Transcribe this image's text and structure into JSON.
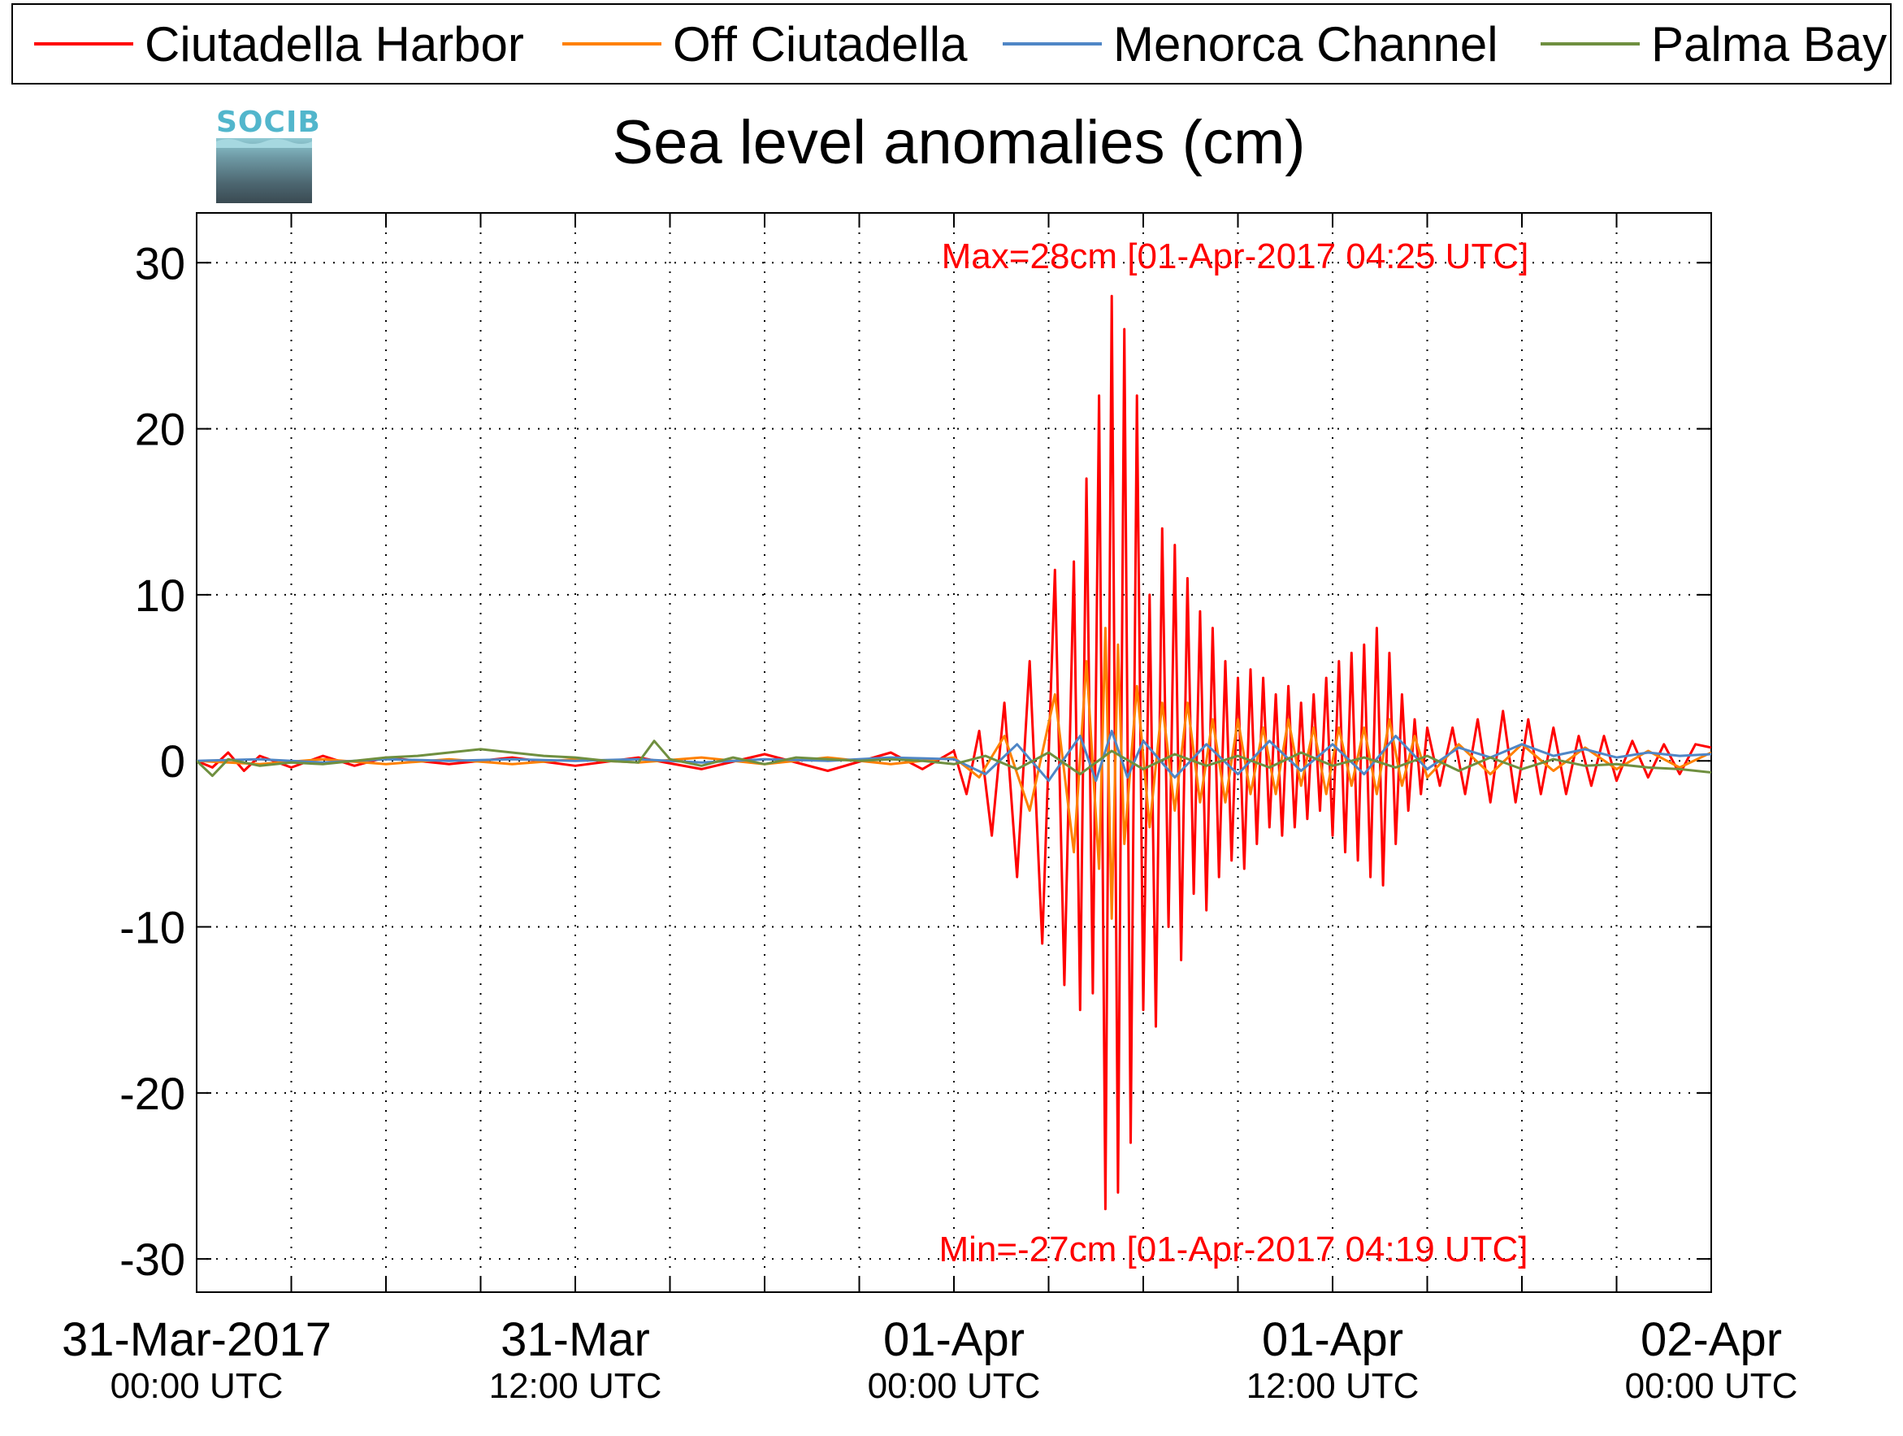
{
  "legend": {
    "items": [
      {
        "label": "Ciutadella Harbor",
        "color": "#ff0000"
      },
      {
        "label": "Off Ciutadella",
        "color": "#ff8000"
      },
      {
        "label": "Menorca Channel",
        "color": "#4f86c6"
      },
      {
        "label": "Palma Bay",
        "color": "#6f8f3f"
      }
    ]
  },
  "logo": {
    "text": "SOCIB"
  },
  "chart_data": {
    "type": "line",
    "title": "Sea level anomalies (cm)",
    "xlabel": "",
    "ylabel": "",
    "ylim": [
      -32,
      33
    ],
    "xlim_hours": [
      0,
      48
    ],
    "grid": true,
    "y_ticks": [
      -30,
      -20,
      -10,
      0,
      10,
      20,
      30
    ],
    "x_major_ticks": [
      {
        "hours": 0,
        "line1": "31-Mar-2017",
        "line2": "00:00 UTC"
      },
      {
        "hours": 12,
        "line1": "31-Mar",
        "line2": "12:00 UTC"
      },
      {
        "hours": 24,
        "line1": "01-Apr",
        "line2": "00:00 UTC"
      },
      {
        "hours": 36,
        "line1": "01-Apr",
        "line2": "12:00 UTC"
      },
      {
        "hours": 48,
        "line1": "02-Apr",
        "line2": "00:00 UTC"
      }
    ],
    "x_minor_tick_hours": [
      3,
      6,
      9,
      15,
      18,
      21,
      27,
      30,
      33,
      39,
      42,
      45
    ],
    "annotations": {
      "max": {
        "text": "Max=28cm [01-Apr-2017 04:25 UTC]",
        "color": "#ff0000"
      },
      "min": {
        "text": "Min=-27cm [01-Apr-2017 04:19 UTC]",
        "color": "#ff0000"
      }
    },
    "series": [
      {
        "name": "Ciutadella Harbor",
        "color": "#ff0000",
        "x": [
          0,
          0.5,
          1,
          1.5,
          2,
          3,
          4,
          5,
          6,
          8,
          10,
          12,
          14,
          16,
          18,
          20,
          22,
          23,
          24,
          24.4,
          24.8,
          25.2,
          25.6,
          26.0,
          26.4,
          26.8,
          27.2,
          27.5,
          27.8,
          28.0,
          28.2,
          28.4,
          28.6,
          28.8,
          29.0,
          29.2,
          29.4,
          29.6,
          29.8,
          30.0,
          30.2,
          30.4,
          30.6,
          30.8,
          31.0,
          31.2,
          31.4,
          31.6,
          31.8,
          32.0,
          32.2,
          32.4,
          32.6,
          32.8,
          33.0,
          33.2,
          33.4,
          33.6,
          33.8,
          34.0,
          34.2,
          34.4,
          34.6,
          34.8,
          35.0,
          35.2,
          35.4,
          35.6,
          35.8,
          36.0,
          36.2,
          36.4,
          36.6,
          36.8,
          37.0,
          37.2,
          37.4,
          37.6,
          37.8,
          38.0,
          38.2,
          38.4,
          38.6,
          38.8,
          39.0,
          39.4,
          39.8,
          40.2,
          40.6,
          41.0,
          41.4,
          41.8,
          42.2,
          42.6,
          43.0,
          43.4,
          43.8,
          44.2,
          44.6,
          45.0,
          45.5,
          46.0,
          46.5,
          47.0,
          47.5,
          48.0
        ],
        "y": [
          0,
          -0.4,
          0.5,
          -0.6,
          0.3,
          -0.4,
          0.3,
          -0.3,
          0.2,
          -0.2,
          0.2,
          -0.3,
          0.2,
          -0.5,
          0.4,
          -0.6,
          0.5,
          -0.5,
          0.6,
          -2.0,
          1.8,
          -4.5,
          3.5,
          -7.0,
          6.0,
          -11.0,
          11.5,
          -13.5,
          12.0,
          -15.0,
          17.0,
          -14.0,
          22.0,
          -27.0,
          28.0,
          -26.0,
          26.0,
          -23.0,
          22.0,
          -15.0,
          10.0,
          -16.0,
          14.0,
          -10.0,
          13.0,
          -12.0,
          11.0,
          -8.0,
          9.0,
          -9.0,
          8.0,
          -7.0,
          6.0,
          -6.0,
          5.0,
          -6.5,
          5.5,
          -5.0,
          5.0,
          -4.0,
          4.0,
          -4.5,
          4.5,
          -4.0,
          3.5,
          -3.5,
          4.0,
          -3.0,
          5.0,
          -4.5,
          6.0,
          -5.5,
          6.5,
          -6.0,
          7.0,
          -7.0,
          8.0,
          -7.5,
          6.5,
          -5.0,
          4.0,
          -3.0,
          2.5,
          -2.0,
          2.0,
          -1.5,
          2.0,
          -2.0,
          2.5,
          -2.5,
          3.0,
          -2.5,
          2.5,
          -2.0,
          2.0,
          -2.0,
          1.5,
          -1.5,
          1.5,
          -1.2,
          1.2,
          -1.0,
          1.0,
          -0.8,
          1.0,
          0.8
        ]
      },
      {
        "name": "Off Ciutadella",
        "color": "#ff8000",
        "x": [
          0,
          2,
          4,
          6,
          8,
          10,
          12,
          14,
          16,
          18,
          20,
          22,
          24,
          24.8,
          25.6,
          26.4,
          27.2,
          27.8,
          28.2,
          28.6,
          28.8,
          29.0,
          29.2,
          29.4,
          29.8,
          30.2,
          30.6,
          31.0,
          31.4,
          31.8,
          32.2,
          32.6,
          33.0,
          33.4,
          33.8,
          34.2,
          34.6,
          35.0,
          35.4,
          35.8,
          36.2,
          36.6,
          37.0,
          37.4,
          37.8,
          38.2,
          38.6,
          39.0,
          40.0,
          41.0,
          42.0,
          43.0,
          44.0,
          45.0,
          46.0,
          47.0,
          48.0
        ],
        "y": [
          0,
          -0.2,
          0.1,
          -0.2,
          0.1,
          -0.2,
          0.1,
          -0.1,
          0.2,
          -0.2,
          0.2,
          -0.2,
          0.2,
          -1.0,
          1.5,
          -3.0,
          4.0,
          -5.5,
          6.0,
          -6.5,
          8.0,
          -9.5,
          7.0,
          -5.0,
          4.5,
          -4.0,
          3.5,
          -3.0,
          3.5,
          -2.5,
          2.5,
          -2.5,
          2.5,
          -2.0,
          2.0,
          -2.0,
          2.5,
          -1.5,
          2.0,
          -2.0,
          2.0,
          -1.5,
          2.0,
          -2.0,
          2.5,
          -1.5,
          1.5,
          -1.0,
          1.0,
          -0.8,
          1.0,
          -0.6,
          0.8,
          -0.5,
          0.6,
          -0.4,
          0.5
        ]
      },
      {
        "name": "Menorca Channel",
        "color": "#4f86c6",
        "x": [
          0,
          2,
          4,
          6,
          8,
          10,
          12,
          14,
          16,
          18,
          20,
          22,
          24,
          25,
          26,
          27,
          28,
          28.5,
          29,
          29.5,
          30,
          31,
          32,
          33,
          34,
          35,
          36,
          37,
          38,
          39,
          40,
          41,
          42,
          43,
          44,
          45,
          46,
          47,
          48
        ],
        "y": [
          0,
          0.1,
          -0.1,
          0.1,
          0.0,
          0.1,
          0.0,
          0.1,
          -0.1,
          0.1,
          0.0,
          0.2,
          0.1,
          -0.8,
          1.0,
          -1.2,
          1.5,
          -1.2,
          1.8,
          -1.0,
          1.2,
          -1.0,
          1.0,
          -0.8,
          1.2,
          -0.6,
          1.0,
          -0.8,
          1.5,
          -0.5,
          0.8,
          0.2,
          1.0,
          0.3,
          0.7,
          0.2,
          0.5,
          0.3,
          0.4
        ]
      },
      {
        "name": "Palma Bay",
        "color": "#6f8f3f",
        "x": [
          0,
          0.5,
          1,
          2,
          3,
          4,
          5,
          6,
          7,
          8,
          9,
          10,
          11,
          12,
          13,
          14,
          14.5,
          15,
          16,
          17,
          18,
          19,
          20,
          21,
          22,
          23,
          24,
          25,
          26,
          27,
          28,
          29,
          30,
          31,
          32,
          33,
          34,
          35,
          36,
          37,
          38,
          39,
          40,
          41,
          42,
          43,
          44,
          45,
          46,
          47,
          48
        ],
        "y": [
          0,
          -0.9,
          0.1,
          -0.3,
          -0.1,
          -0.2,
          0.0,
          0.2,
          0.3,
          0.5,
          0.7,
          0.5,
          0.3,
          0.2,
          0.0,
          -0.1,
          1.2,
          0.1,
          -0.3,
          0.2,
          -0.2,
          0.2,
          0.1,
          0.0,
          0.1,
          0.0,
          -0.2,
          0.3,
          -0.5,
          0.5,
          -0.8,
          0.6,
          -0.5,
          0.4,
          -0.3,
          0.3,
          -0.4,
          0.5,
          -0.3,
          0.2,
          -0.4,
          0.3,
          -0.6,
          0.2,
          -0.5,
          0.1,
          -0.3,
          -0.2,
          -0.4,
          -0.5,
          -0.7
        ]
      }
    ]
  }
}
